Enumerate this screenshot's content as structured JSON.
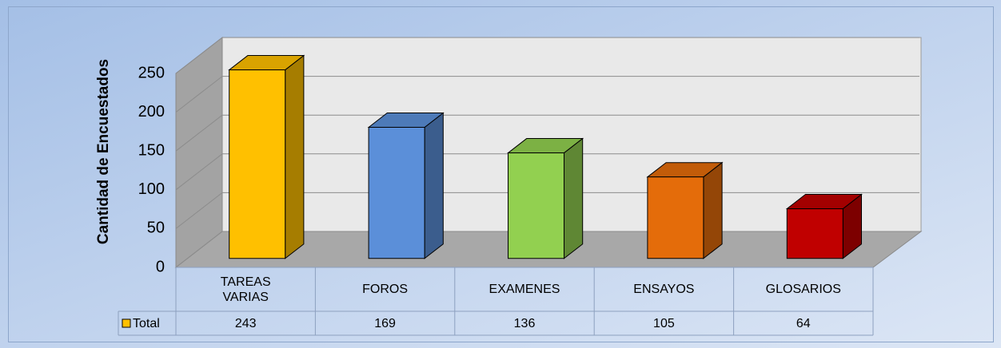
{
  "chart_data": {
    "type": "bar3d",
    "y_label": "Cantidad de Encuestados",
    "categories": [
      "TAREAS VARIAS",
      "FOROS",
      "EXAMENES",
      "ENSAYOS",
      "GLOSARIOS"
    ],
    "series": [
      {
        "name": "Total",
        "color": "#FFC000",
        "colors": [
          "#FFC000",
          "#5B8FD9",
          "#92D050",
          "#E46C0A",
          "#C00000"
        ],
        "values": [
          243,
          169,
          136,
          105,
          64
        ]
      }
    ],
    "ylim": [
      0,
      250
    ],
    "yticks": [
      0,
      50,
      100,
      150,
      200,
      250
    ],
    "grid": true
  }
}
